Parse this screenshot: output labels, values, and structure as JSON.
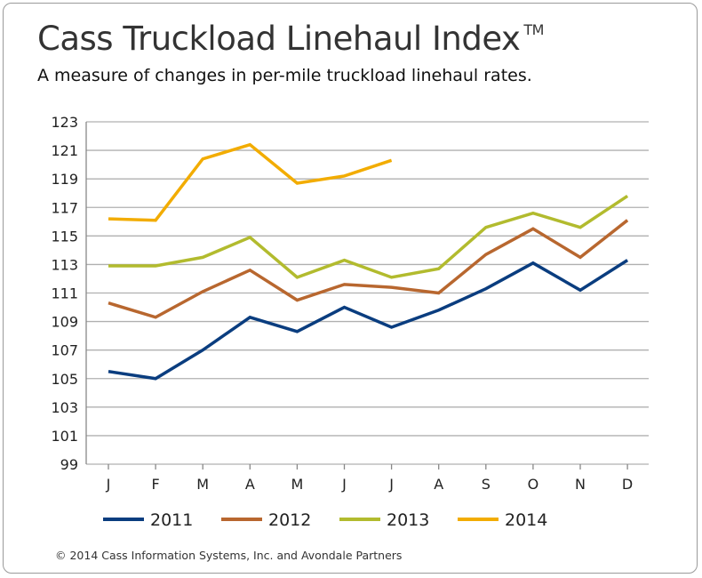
{
  "chart_data": {
    "type": "line",
    "title": "Cass Truckload Linehaul Index",
    "title_mark": "TM",
    "subtitle": "A measure of changes in per-mile truckload linehaul rates.",
    "categories": [
      "J",
      "F",
      "M",
      "A",
      "M",
      "J",
      "J",
      "A",
      "S",
      "O",
      "N",
      "D"
    ],
    "ylim": [
      99,
      123
    ],
    "yticks": [
      99,
      101,
      103,
      105,
      107,
      109,
      111,
      113,
      115,
      117,
      119,
      121,
      123
    ],
    "grid": true,
    "legend_position": "bottom",
    "series": [
      {
        "name": "2011",
        "color": "#0a3d7f",
        "values": [
          105.5,
          105.0,
          107.0,
          109.3,
          108.3,
          110.0,
          108.6,
          109.8,
          111.3,
          113.1,
          111.2,
          113.3
        ]
      },
      {
        "name": "2012",
        "color": "#b8672f",
        "values": [
          110.3,
          109.3,
          111.1,
          112.6,
          110.5,
          111.6,
          111.4,
          111.0,
          113.7,
          115.5,
          113.5,
          116.1
        ]
      },
      {
        "name": "2013",
        "color": "#b2bb2e",
        "values": [
          112.9,
          112.9,
          113.5,
          114.9,
          112.1,
          113.3,
          112.1,
          112.7,
          115.6,
          116.6,
          115.6,
          117.8
        ]
      },
      {
        "name": "2014",
        "color": "#f2ac00",
        "values": [
          116.2,
          116.1,
          120.4,
          121.4,
          118.7,
          119.2,
          120.3,
          null,
          null,
          null,
          null,
          null
        ]
      }
    ]
  },
  "footer": {
    "copyright": "© 2014 Cass Information Systems, Inc. and Avondale Partners"
  }
}
